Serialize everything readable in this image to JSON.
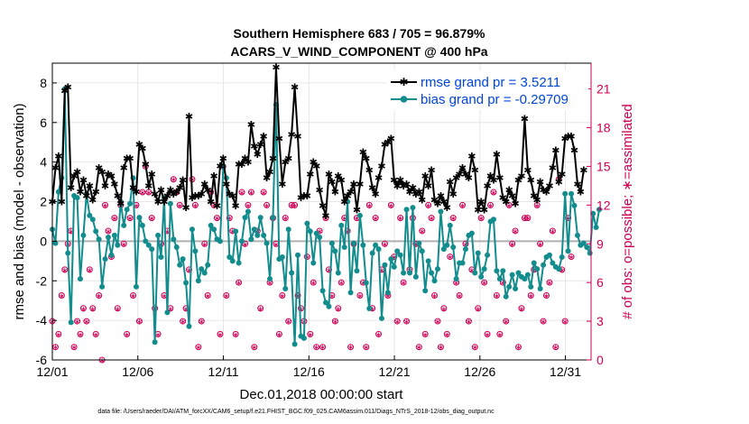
{
  "chart_data": {
    "type": "line",
    "title_line1": "Southern Hemisphere 683 / 705 = 96.879%",
    "title_line2": "ACARS_V_WIND_COMPONENT @ 400 hPa",
    "ylabel": "rmse and bias (model - observation)",
    "ylabel_right": "# of obs: o=possible; ∗=assimilated",
    "xlabel": "Dec.01,2018 00:00:00 start",
    "footer": "data file: /Users/raeder/DAI/ATM_forcXX/CAM6_setup/f.e21.FHIST_BGC.f09_025.CAM6assim.011/Diags_NTrS_2018-12/obs_diag_output.nc",
    "ylim": [
      -6,
      9
    ],
    "yticks": [
      -6,
      -4,
      -2,
      0,
      2,
      4,
      6,
      8
    ],
    "ylim_right": [
      0,
      23
    ],
    "yticks_right": [
      0,
      3,
      6,
      9,
      12,
      15,
      18,
      21
    ],
    "xlim": [
      0,
      31.5
    ],
    "xticks": [
      0,
      5,
      10,
      15,
      20,
      25,
      30
    ],
    "xtick_labels": [
      "12/01",
      "12/06",
      "12/11",
      "12/16",
      "12/21",
      "12/26",
      "12/31"
    ],
    "grid": true,
    "legend_position": "top-right",
    "colors": {
      "rmse": "#000000",
      "bias": "#128c8c",
      "obs": "#cc0055",
      "zero_line": "#b0b0b0",
      "legend_text": "#0047d6"
    },
    "series": [
      {
        "name": "rmse grand pr = 3.5211",
        "values": [
          2.0,
          3.7,
          4.3,
          2.0,
          7.6,
          7.8,
          2.7,
          3.3,
          3.5,
          2.5,
          3.1,
          2.3,
          2.8,
          2.1,
          2.5,
          3.7,
          3.5,
          2.8,
          3.4,
          3.3,
          2.9,
          2.3,
          1.9,
          3.7,
          4.2,
          4.2,
          2.7,
          2.5,
          4.9,
          4.7,
          3.9,
          2.8,
          3.4,
          2.4,
          2.0,
          2.6,
          2.0,
          2.3,
          2.6,
          2.4,
          2.5,
          2.7,
          3.1,
          1.7,
          6.3,
          2.2,
          2.3,
          2.3,
          2.4,
          2.9,
          2.6,
          2.0,
          3.3,
          1.8,
          3.8,
          4.2,
          2.9,
          2.4,
          2.3,
          1.8,
          3.9,
          3.9,
          4.2,
          4.0,
          5.9,
          4.8,
          4.4,
          4.9,
          5.3,
          3.2,
          3.5,
          4.2,
          8.8,
          5.2,
          2.9,
          4.0,
          4.2,
          5.4,
          7.8,
          5.3,
          2.2,
          2.3,
          2.3,
          3.4,
          4.0,
          3.8,
          2.6,
          1.8,
          1.3,
          3.4,
          3.0,
          2.5,
          3.3,
          3.1,
          2.0,
          2.3,
          2.5,
          2.9,
          1.6,
          2.9,
          4.5,
          4.2,
          3.6,
          2.7,
          2.4,
          3.2,
          3.8,
          4.9,
          5.0,
          5.2,
          3.1,
          2.8,
          3.1,
          2.8,
          2.9,
          2.5,
          2.7,
          2.4,
          2.5,
          2.1,
          3.3,
          2.8,
          3.6,
          2.1,
          1.9,
          2.3,
          2.0,
          1.7,
          3.0,
          2.4,
          3.2,
          3.4,
          3.7,
          3.4,
          3.2,
          4.3,
          3.6,
          1.6,
          2.0,
          1.6,
          2.8,
          3.3,
          3.1,
          4.4,
          3.2,
          2.2,
          2.0,
          2.6,
          2.3,
          1.9,
          3.1,
          3.3,
          6.2,
          3.6,
          3.1,
          2.3,
          2.1,
          3.0,
          2.6,
          2.5,
          2.8,
          3.7,
          4.6,
          3.0,
          3.4,
          5.2,
          5.3,
          5.3,
          4.6,
          2.9,
          2.5,
          3.6
        ]
      },
      {
        "name": "bias grand pr = -0.29709",
        "values": [
          0.6,
          -0.1,
          2.5,
          3.2,
          7.7,
          -0.6,
          -4.1,
          2.3,
          2.2,
          -1.9,
          0.3,
          2.4,
          1.3,
          1.1,
          0.5,
          0.1,
          -2.3,
          -0.9,
          0.2,
          -0.7,
          0.3,
          -0.2,
          2.0,
          0.8,
          1.6,
          1.9,
          3.2,
          -2.3,
          1.2,
          0.8,
          0.0,
          -0.2,
          -0.4,
          -5.1,
          0.3,
          -0.8,
          2.2,
          -3.6,
          1.9,
          0.1,
          -0.3,
          -1.2,
          -0.9,
          -2.1,
          -4.3,
          0.6,
          -0.5,
          -2.0,
          -1.4,
          -1.6,
          -1.2,
          0.8,
          0.6,
          0.1,
          0.0,
          3.8,
          3.2,
          -0.8,
          -1.0,
          0.5,
          -1.1,
          0.0,
          1.2,
          1.5,
          0.1,
          0.6,
          0.3,
          1.2,
          0.3,
          -0.1,
          -1.9,
          1.2,
          6.9,
          -0.9,
          -0.8,
          -2.4,
          0.6,
          -1.6,
          -5.2,
          -0.7,
          -4.8,
          -4.9,
          0.9,
          0.5,
          -1.1,
          0.4,
          0.2,
          -2.5,
          -3.1,
          -3.3,
          -0.1,
          -0.5,
          -1.6,
          0.8,
          -0.3,
          2.0,
          -2.6,
          -0.1,
          -1.5,
          1.3,
          -0.2,
          -2.1,
          -3.4,
          -0.6,
          -0.2,
          -0.4,
          -3.9,
          -1.2,
          -2.6,
          -0.9,
          -1.3,
          -0.5,
          -0.7,
          -1.6,
          1.6,
          -1.6,
          1.7,
          -1.8,
          -0.1,
          -0.5,
          -2.5,
          -1.0,
          -1.6,
          -2.0,
          -1.4,
          1.5,
          -0.4,
          -0.2,
          0.8,
          -0.3,
          -1.9,
          -1.1,
          -1.1,
          -0.4,
          0.3,
          0.4,
          -1.6,
          -0.6,
          -1.8,
          -1.4,
          -0.7,
          1.0,
          1.1,
          -1.5,
          -1.9,
          -1.5,
          -2.8,
          -2.3,
          -1.7,
          -2.4,
          -1.6,
          -1.8,
          -1.9,
          -1.7,
          -2.3,
          -1.1,
          -1.4,
          -2.4,
          -1.2,
          -0.8,
          -0.7,
          -1.1,
          -1.3,
          -1.4,
          -0.8,
          2.4,
          -0.5,
          2.4,
          1.8,
          0.3,
          -0.2,
          -0.1,
          -0.3,
          -0.6,
          1.4,
          0.7,
          1.6
        ]
      }
    ],
    "obs_possible": [
      3,
      1,
      2,
      5,
      7,
      9,
      10,
      1,
      3,
      2,
      4,
      3,
      7,
      4,
      2,
      5,
      0,
      12,
      10,
      8,
      11,
      4,
      12,
      9,
      2,
      11,
      5,
      12,
      3,
      13,
      15,
      13,
      11,
      4,
      2,
      9,
      5,
      10,
      4,
      14,
      13,
      12,
      3,
      4,
      7,
      14,
      12,
      1,
      3,
      9,
      5,
      13,
      12,
      11,
      2,
      15,
      5,
      11,
      10,
      2,
      6,
      13,
      9,
      12,
      13,
      1,
      10,
      4,
      13,
      12,
      6,
      11,
      9,
      2,
      5,
      11,
      3,
      12,
      12,
      5,
      4,
      3,
      8,
      2,
      6,
      1,
      10,
      1,
      11,
      7,
      5,
      3,
      4,
      6,
      11,
      10,
      1,
      9,
      11,
      5,
      6,
      1,
      12,
      4,
      11,
      2,
      7,
      9,
      5,
      12,
      8,
      3,
      11,
      6,
      3,
      7,
      11,
      9,
      1,
      10,
      2,
      12,
      11,
      5,
      3,
      1,
      4,
      2,
      8,
      11,
      6,
      5,
      12,
      9,
      3,
      7,
      1,
      4,
      11,
      6,
      2,
      12,
      13,
      5,
      2,
      6,
      3,
      12,
      9,
      10,
      1,
      4,
      11,
      11,
      5,
      7,
      12,
      9,
      3,
      5,
      6,
      10,
      1,
      14,
      7,
      3,
      11,
      8
    ],
    "obs_assimilated": [
      3,
      1,
      2,
      5,
      7,
      9,
      10,
      1,
      3,
      2,
      4,
      3,
      7,
      4,
      2,
      5,
      0,
      12,
      10,
      8,
      11,
      4,
      12,
      9,
      2,
      11,
      5,
      12,
      3,
      13,
      15,
      13,
      11,
      4,
      2,
      9,
      5,
      10,
      4,
      14,
      13,
      12,
      3,
      4,
      7,
      14,
      12,
      1,
      3,
      9,
      5,
      13,
      12,
      11,
      2,
      15,
      5,
      11,
      10,
      2,
      6,
      13,
      9,
      12,
      13,
      1,
      10,
      4,
      13,
      12,
      6,
      11,
      9,
      2,
      5,
      11,
      3,
      12,
      12,
      5,
      4,
      3,
      8,
      2,
      6,
      1,
      10,
      1,
      11,
      7,
      5,
      3,
      4,
      6,
      11,
      10,
      1,
      9,
      11,
      5,
      6,
      1,
      12,
      4,
      11,
      2,
      7,
      9,
      5,
      12,
      8,
      3,
      11,
      6,
      3,
      7,
      11,
      9,
      1,
      10,
      2,
      12,
      11,
      5,
      3,
      1,
      4,
      2,
      8,
      11,
      6,
      5,
      12,
      9,
      3,
      7,
      1,
      4,
      11,
      6,
      2,
      12,
      13,
      5,
      2,
      6,
      3,
      12,
      9,
      10,
      1,
      4,
      11,
      11,
      5,
      7,
      12,
      9,
      3,
      5,
      6,
      10,
      1,
      14,
      7,
      3,
      11,
      8
    ]
  }
}
